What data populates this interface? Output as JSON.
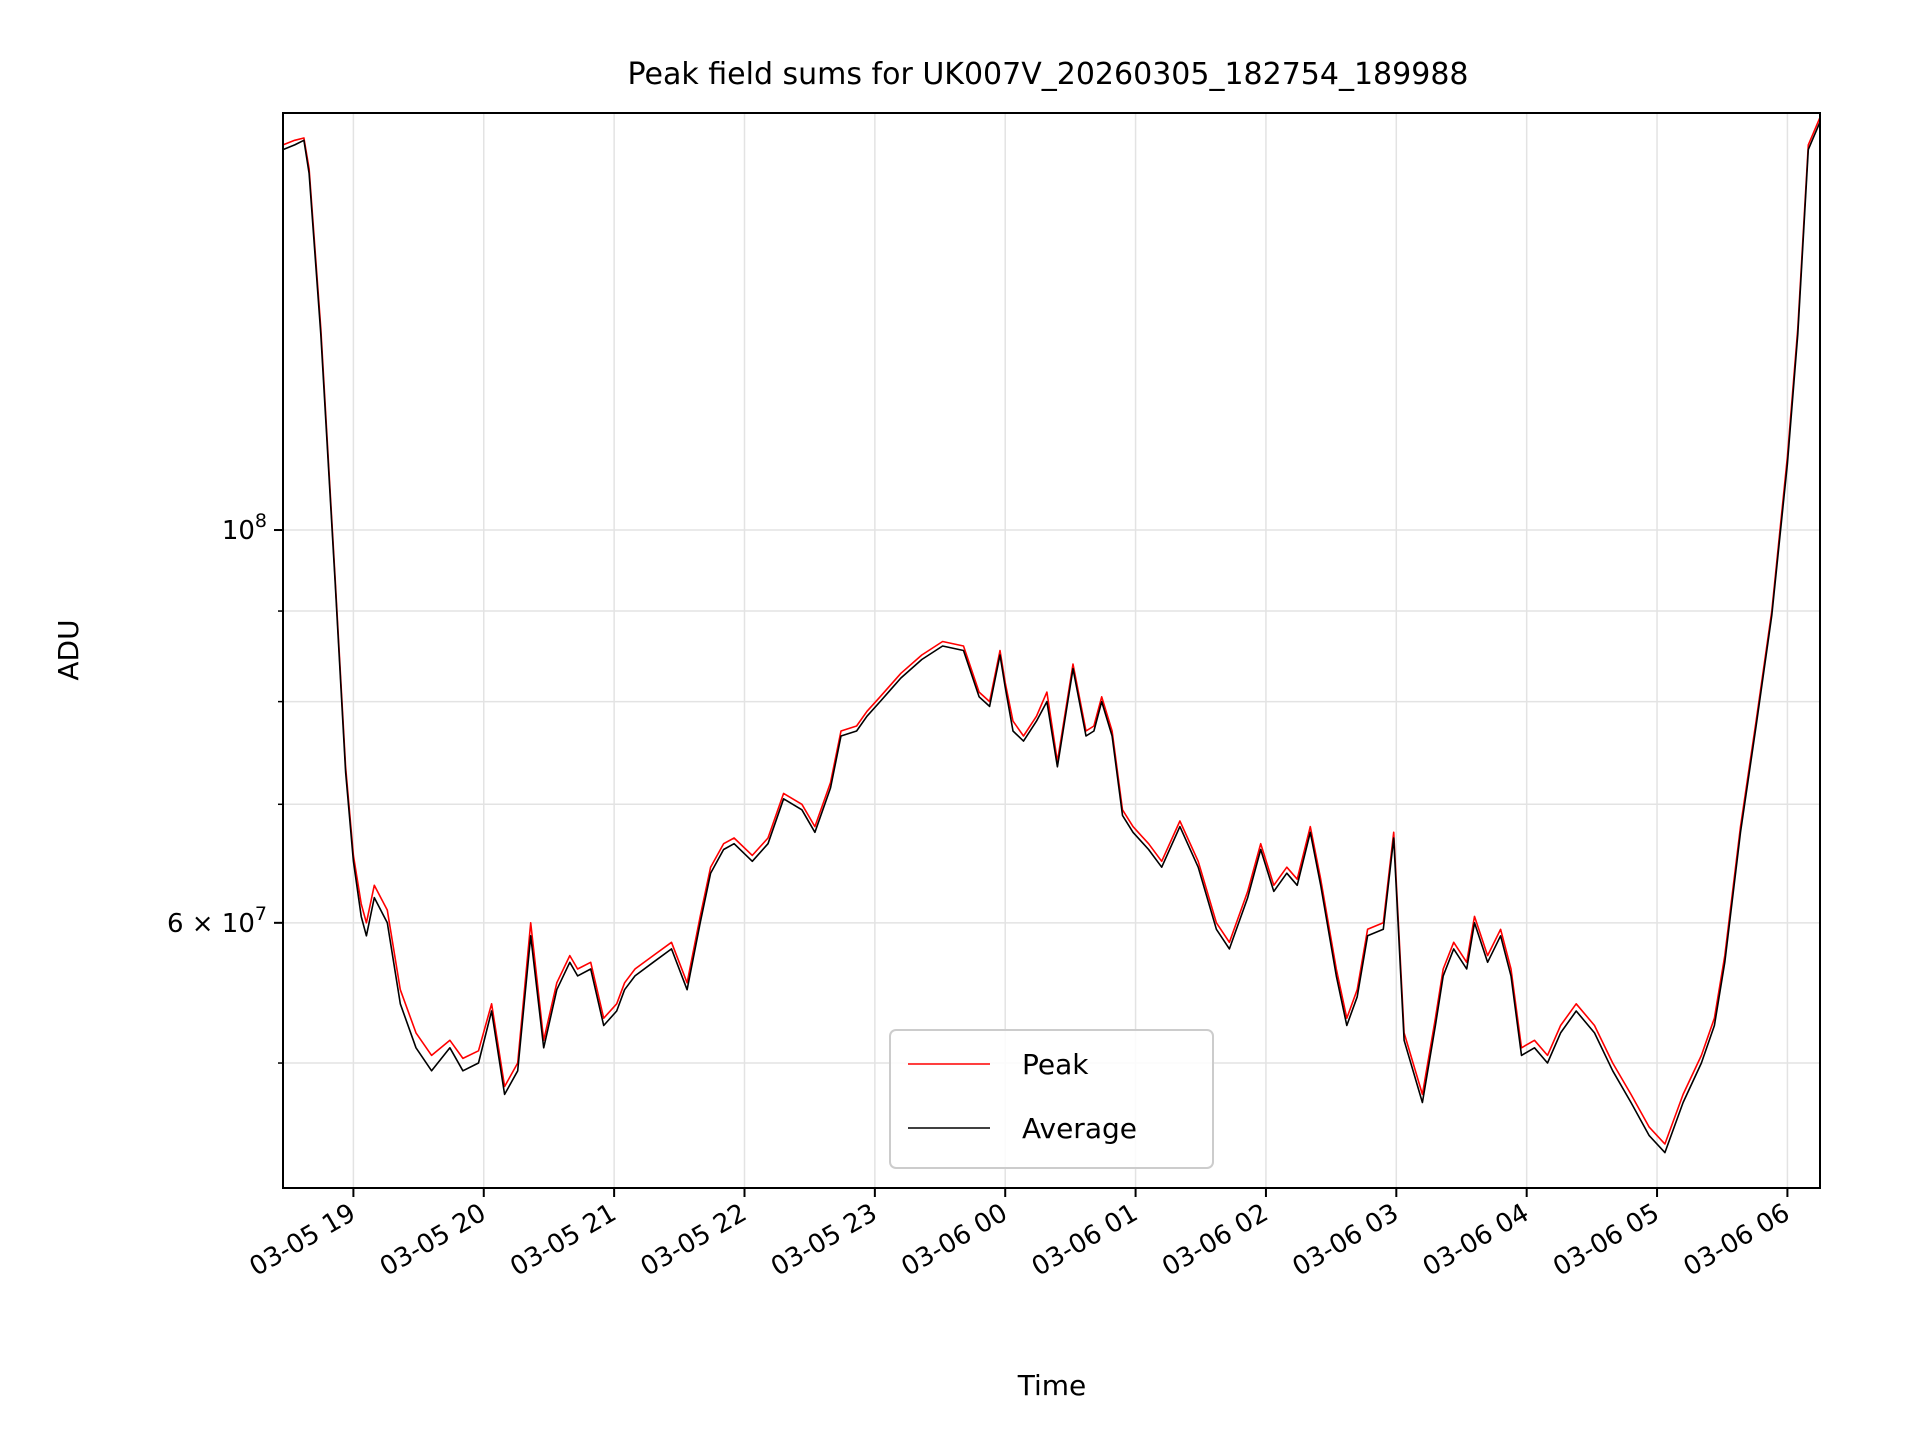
{
  "chart_data": {
    "type": "line",
    "title": "Peak field sums for UK007V_20260305_182754_189988",
    "xlabel": "Time",
    "ylabel": "ADU",
    "yscale": "log",
    "ylim": [
      42500000,
      172000000
    ],
    "xlim_hours": [
      18.46,
      30.25
    ],
    "grid": true,
    "legend_position": "lower-center",
    "x_tick_labels": [
      "03-05 19",
      "03-05 20",
      "03-05 21",
      "03-05 22",
      "03-05 23",
      "03-06 00",
      "03-06 01",
      "03-06 02",
      "03-06 03",
      "03-06 04",
      "03-06 05",
      "03-06 06"
    ],
    "x_tick_hours": [
      19,
      20,
      21,
      22,
      23,
      24,
      25,
      26,
      27,
      28,
      29,
      30
    ],
    "y_major_ticks": [
      {
        "value": 100000000,
        "label_base": "10",
        "label_exp": "8"
      },
      {
        "value": 60000000,
        "label_base": "6 × 10",
        "label_exp": "7"
      }
    ],
    "y_minor_ticks": [
      50000000,
      70000000,
      80000000,
      90000000
    ],
    "series": [
      {
        "name": "Peak",
        "color": "#ff0000",
        "x_hours": [
          18.46,
          18.55,
          18.62,
          18.66,
          18.75,
          18.86,
          18.94,
          19.0,
          19.06,
          19.1,
          19.16,
          19.26,
          19.36,
          19.48,
          19.6,
          19.74,
          19.84,
          19.96,
          20.06,
          20.16,
          20.26,
          20.36,
          20.46,
          20.56,
          20.66,
          20.72,
          20.82,
          20.92,
          21.02,
          21.08,
          21.16,
          21.3,
          21.44,
          21.56,
          21.66,
          21.74,
          21.84,
          21.92,
          22.06,
          22.18,
          22.3,
          22.44,
          22.54,
          22.66,
          22.74,
          22.86,
          22.94,
          23.04,
          23.2,
          23.36,
          23.52,
          23.68,
          23.8,
          23.88,
          23.96,
          24.0,
          24.06,
          24.14,
          24.24,
          24.32,
          24.4,
          24.52,
          24.62,
          24.68,
          24.74,
          24.82,
          24.9,
          24.98,
          25.1,
          25.2,
          25.34,
          25.48,
          25.62,
          25.72,
          25.86,
          25.96,
          26.06,
          26.16,
          26.24,
          26.34,
          26.42,
          26.54,
          26.62,
          26.7,
          26.78,
          26.9,
          26.98,
          27.06,
          27.2,
          27.3,
          27.36,
          27.44,
          27.54,
          27.6,
          27.7,
          27.8,
          27.88,
          27.96,
          28.06,
          28.16,
          28.26,
          28.38,
          28.52,
          28.66,
          28.8,
          28.94,
          29.06,
          29.2,
          29.34,
          29.44,
          29.52,
          29.64,
          29.76,
          29.88,
          30.0,
          30.08,
          30.16,
          30.25
        ],
        "values": [
          165000000,
          166000000,
          166500000,
          160000000,
          130000000,
          94000000,
          73500000,
          65500000,
          61500000,
          60000000,
          63000000,
          61000000,
          55000000,
          52000000,
          50500000,
          51500000,
          50300000,
          50800000,
          54000000,
          48500000,
          50000000,
          60000000,
          51500000,
          55500000,
          57500000,
          56500000,
          57000000,
          53000000,
          54000000,
          55500000,
          56500000,
          57500000,
          58500000,
          55500000,
          60500000,
          64500000,
          66500000,
          67000000,
          65500000,
          67000000,
          71000000,
          70000000,
          68000000,
          72000000,
          77000000,
          77500000,
          79000000,
          80500000,
          83000000,
          85000000,
          86500000,
          86000000,
          81000000,
          80000000,
          85500000,
          82000000,
          78000000,
          76500000,
          78500000,
          81000000,
          74000000,
          84000000,
          77000000,
          77500000,
          80500000,
          77000000,
          69500000,
          68000000,
          66500000,
          65000000,
          68500000,
          65000000,
          60000000,
          58500000,
          62500000,
          66500000,
          63000000,
          64500000,
          63500000,
          68000000,
          63500000,
          56500000,
          53000000,
          55000000,
          59500000,
          60000000,
          67500000,
          52000000,
          48000000,
          53000000,
          56500000,
          58500000,
          57000000,
          60500000,
          57500000,
          59500000,
          56500000,
          51000000,
          51500000,
          50500000,
          52500000,
          54000000,
          52500000,
          50000000,
          48000000,
          46000000,
          45000000,
          48000000,
          50500000,
          53000000,
          57500000,
          68000000,
          78000000,
          90000000,
          110000000,
          130000000,
          165000000,
          171000000
        ]
      },
      {
        "name": "Average",
        "color": "#000000",
        "x_hours": [
          18.46,
          18.55,
          18.62,
          18.66,
          18.75,
          18.86,
          18.94,
          19.0,
          19.06,
          19.1,
          19.16,
          19.26,
          19.36,
          19.48,
          19.6,
          19.74,
          19.84,
          19.96,
          20.06,
          20.16,
          20.26,
          20.36,
          20.46,
          20.56,
          20.66,
          20.72,
          20.82,
          20.92,
          21.02,
          21.08,
          21.16,
          21.3,
          21.44,
          21.56,
          21.66,
          21.74,
          21.84,
          21.92,
          22.06,
          22.18,
          22.3,
          22.44,
          22.54,
          22.66,
          22.74,
          22.86,
          22.94,
          23.04,
          23.2,
          23.36,
          23.52,
          23.68,
          23.8,
          23.88,
          23.96,
          24.0,
          24.06,
          24.14,
          24.24,
          24.32,
          24.4,
          24.52,
          24.62,
          24.68,
          24.74,
          24.82,
          24.9,
          24.98,
          25.1,
          25.2,
          25.34,
          25.48,
          25.62,
          25.72,
          25.86,
          25.96,
          26.06,
          26.16,
          26.24,
          26.34,
          26.42,
          26.54,
          26.62,
          26.7,
          26.78,
          26.9,
          26.98,
          27.06,
          27.2,
          27.3,
          27.36,
          27.44,
          27.54,
          27.6,
          27.7,
          27.8,
          27.88,
          27.96,
          28.06,
          28.16,
          28.26,
          28.38,
          28.52,
          28.66,
          28.8,
          28.94,
          29.06,
          29.2,
          29.34,
          29.44,
          29.52,
          29.64,
          29.76,
          29.88,
          30.0,
          30.08,
          30.16,
          30.25
        ],
        "values": [
          164000000,
          165000000,
          166000000,
          159000000,
          129000000,
          93500000,
          73000000,
          65000000,
          60500000,
          59000000,
          62000000,
          60000000,
          54000000,
          51000000,
          49500000,
          51000000,
          49500000,
          50000000,
          53500000,
          48000000,
          49500000,
          59000000,
          51000000,
          55000000,
          57000000,
          56000000,
          56500000,
          52500000,
          53500000,
          55000000,
          56000000,
          57000000,
          58000000,
          55000000,
          60000000,
          64000000,
          66000000,
          66500000,
          65000000,
          66500000,
          70500000,
          69500000,
          67500000,
          71500000,
          76500000,
          77000000,
          78500000,
          80000000,
          82500000,
          84500000,
          86000000,
          85500000,
          80500000,
          79500000,
          85000000,
          81500000,
          77000000,
          76000000,
          78000000,
          80000000,
          73500000,
          83500000,
          76500000,
          77000000,
          80000000,
          76500000,
          69000000,
          67500000,
          66000000,
          64500000,
          68000000,
          64500000,
          59500000,
          58000000,
          62000000,
          66000000,
          62500000,
          64000000,
          63000000,
          67500000,
          63000000,
          56000000,
          52500000,
          54500000,
          59000000,
          59500000,
          67000000,
          51500000,
          47500000,
          52500000,
          56000000,
          58000000,
          56500000,
          60000000,
          57000000,
          59000000,
          56000000,
          50500000,
          51000000,
          50000000,
          52000000,
          53500000,
          52000000,
          49500000,
          47500000,
          45500000,
          44500000,
          47500000,
          50000000,
          52500000,
          57000000,
          67500000,
          77500000,
          89500000,
          109000000,
          129000000,
          164000000,
          170000000
        ]
      }
    ]
  }
}
